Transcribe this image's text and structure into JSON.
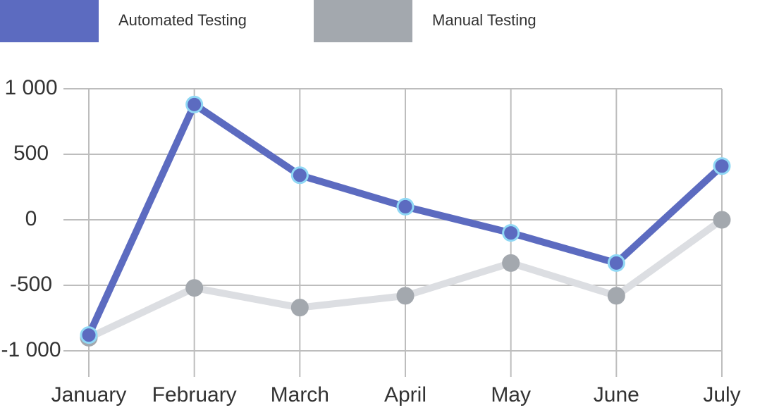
{
  "chart_data": {
    "type": "line",
    "categories": [
      "January",
      "February",
      "March",
      "April",
      "May",
      "June",
      "July"
    ],
    "series": [
      {
        "name": "Automated Testing",
        "color": "#5c6bc0",
        "line_color": "#5c6bc0",
        "marker_stroke": "#90d8f5",
        "values": [
          -880,
          880,
          340,
          100,
          -100,
          -330,
          410
        ]
      },
      {
        "name": "Manual Testing",
        "color": "#a3a8ae",
        "line_color": "#dcdee2",
        "marker_stroke": "#a3a8ae",
        "values": [
          -900,
          -520,
          -670,
          -580,
          -330,
          -580,
          0
        ]
      }
    ],
    "ylim": [
      -1000,
      1000
    ],
    "yticks": [
      {
        "value": -1000,
        "label": "-1 000"
      },
      -500,
      0,
      500,
      {
        "value": 1000,
        "label": "1 000"
      }
    ],
    "grid": true,
    "legend": "top-left"
  }
}
